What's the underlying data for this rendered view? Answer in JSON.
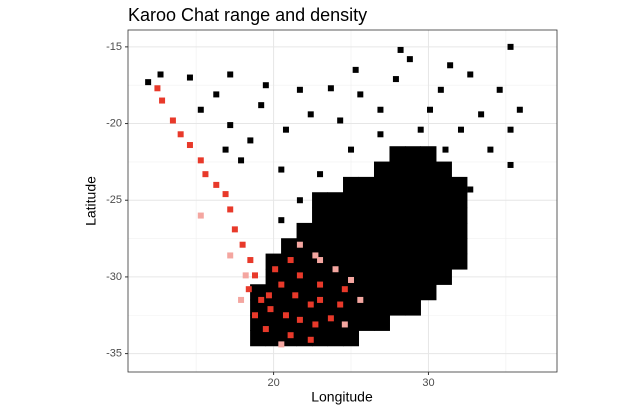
{
  "chart_data": {
    "type": "scatter",
    "title": "Karoo Chat range and density",
    "x_label": "Longitude",
    "y_label": "Latitude",
    "xlim": [
      10.6,
      38.3
    ],
    "ylim": [
      -36.2,
      -13.9
    ],
    "xticks": [
      20,
      30
    ],
    "yticks": [
      -35,
      -30,
      -25,
      -20,
      -15
    ],
    "x_minor_grid": [
      15,
      25,
      35
    ],
    "y_minor_grid": [
      -32.5,
      -27.5,
      -22.5,
      -17.5
    ],
    "grid": true,
    "series": [
      {
        "color": "#000000",
        "x": [
          28,
          29,
          30,
          27,
          28,
          29,
          30,
          31,
          25,
          26,
          27,
          28,
          29,
          30,
          31,
          32,
          23,
          24,
          25,
          26,
          27,
          28,
          29,
          30,
          31,
          32,
          23,
          24,
          25,
          26,
          27,
          28,
          29,
          30,
          31,
          32,
          22,
          23,
          24,
          25,
          26,
          27,
          28,
          29,
          30,
          31,
          32,
          21,
          22,
          23,
          24,
          25,
          26,
          27,
          28,
          29,
          30,
          31,
          32,
          20,
          21,
          22,
          23,
          24,
          25,
          26,
          27,
          28,
          29,
          30,
          31,
          32,
          20,
          21,
          22,
          23,
          24,
          25,
          26,
          27,
          28,
          29,
          30,
          31,
          19,
          20,
          21,
          22,
          23,
          24,
          25,
          26,
          27,
          28,
          29,
          30,
          19,
          20,
          21,
          22,
          23,
          24,
          25,
          26,
          27,
          28,
          29,
          19,
          20,
          21,
          22,
          23,
          24,
          25,
          26,
          27,
          19,
          20,
          21,
          22,
          23,
          24,
          25
        ],
        "y": [
          -22,
          -22,
          -22,
          -23,
          -23,
          -23,
          -23,
          -23,
          -24,
          -24,
          -24,
          -24,
          -24,
          -24,
          -24,
          -24,
          -25,
          -25,
          -25,
          -25,
          -25,
          -25,
          -25,
          -25,
          -25,
          -25,
          -26,
          -26,
          -26,
          -26,
          -26,
          -26,
          -26,
          -26,
          -26,
          -26,
          -27,
          -27,
          -27,
          -27,
          -27,
          -27,
          -27,
          -27,
          -27,
          -27,
          -27,
          -28,
          -28,
          -28,
          -28,
          -28,
          -28,
          -28,
          -28,
          -28,
          -28,
          -28,
          -28,
          -29,
          -29,
          -29,
          -29,
          -29,
          -29,
          -29,
          -29,
          -29,
          -29,
          -29,
          -29,
          -29,
          -30,
          -30,
          -30,
          -30,
          -30,
          -30,
          -30,
          -30,
          -30,
          -30,
          -30,
          -30,
          -31,
          -31,
          -31,
          -31,
          -31,
          -31,
          -31,
          -31,
          -31,
          -31,
          -31,
          -31,
          -32,
          -32,
          -32,
          -32,
          -32,
          -32,
          -32,
          -32,
          -32,
          -32,
          -32,
          -33,
          -33,
          -33,
          -33,
          -33,
          -33,
          -33,
          -33,
          -33,
          -34,
          -34,
          -34,
          -34,
          -34,
          -34,
          -34
        ]
      },
      {
        "color": "#000000",
        "x": [
          11.9,
          12.7,
          14.6,
          17.2,
          19.5,
          21.7,
          23.7,
          25.6,
          28.2,
          28.8,
          31.4,
          35.3,
          32.7,
          34.6,
          35.9,
          30.1,
          26.9,
          24.3,
          22.4,
          20.8,
          18.5,
          16.9,
          17.9,
          20.5,
          23,
          25,
          26.9,
          32.1,
          34,
          35.3,
          35.3,
          32.7,
          21.7,
          23.7,
          20.5,
          30.8,
          25.3,
          16.3,
          15.3,
          17.2,
          19.2,
          27.9,
          29.5,
          31.1,
          33.4
        ],
        "y": [
          -17.3,
          -16.8,
          -17,
          -16.8,
          -17.5,
          -17.8,
          -17.7,
          -18.1,
          -15.2,
          -15.8,
          -16.2,
          -15,
          -16.8,
          -17.8,
          -19.1,
          -19.1,
          -19.1,
          -19.8,
          -19.4,
          -20.4,
          -21.1,
          -21.7,
          -22.4,
          -23,
          -23.3,
          -21.7,
          -20.7,
          -20.4,
          -21.7,
          -22.7,
          -20.4,
          -24.3,
          -25,
          -25.6,
          -26.3,
          -17.8,
          -16.5,
          -18.1,
          -19.1,
          -20.1,
          -18.8,
          -17.1,
          -20.4,
          -21.7,
          -19.4
        ]
      },
      {
        "color": "#f4a6a0",
        "x": [
          25,
          25.6,
          24,
          23,
          18.2,
          17.9,
          22.7,
          21.7,
          17.2,
          15.3,
          24.6,
          20.5
        ],
        "y": [
          -30.2,
          -31.5,
          -29.5,
          -28.9,
          -29.9,
          -31.5,
          -28.6,
          -27.9,
          -28.6,
          -26,
          -33.1,
          -34.4
        ]
      },
      {
        "color": "#e8392a",
        "x": [
          12.5,
          12.8,
          13.5,
          14,
          14.6,
          15.3,
          15.6,
          16.3,
          16.9,
          17.2,
          17.5,
          18,
          18.5,
          18.8,
          18.4,
          19.2,
          19.8,
          20.8,
          21.7,
          22.7,
          23.7,
          24.3,
          23,
          21.4,
          20.5,
          19.5,
          21.1,
          22.4,
          20.1,
          21.7,
          21.1,
          23,
          24.6,
          18.8,
          19.7,
          22.4
        ],
        "y": [
          -17.7,
          -18.5,
          -19.8,
          -20.7,
          -21.4,
          -22.4,
          -23.3,
          -24,
          -24.6,
          -25.6,
          -26.9,
          -27.9,
          -28.9,
          -29.9,
          -30.8,
          -31.5,
          -32.1,
          -32.5,
          -32.8,
          -33.1,
          -32.7,
          -31.8,
          -31.5,
          -31.2,
          -30.5,
          -33.4,
          -33.8,
          -34.1,
          -29.5,
          -29.9,
          -28.9,
          -30.5,
          -30.8,
          -32.5,
          -31.2,
          -31.8
        ]
      }
    ]
  }
}
